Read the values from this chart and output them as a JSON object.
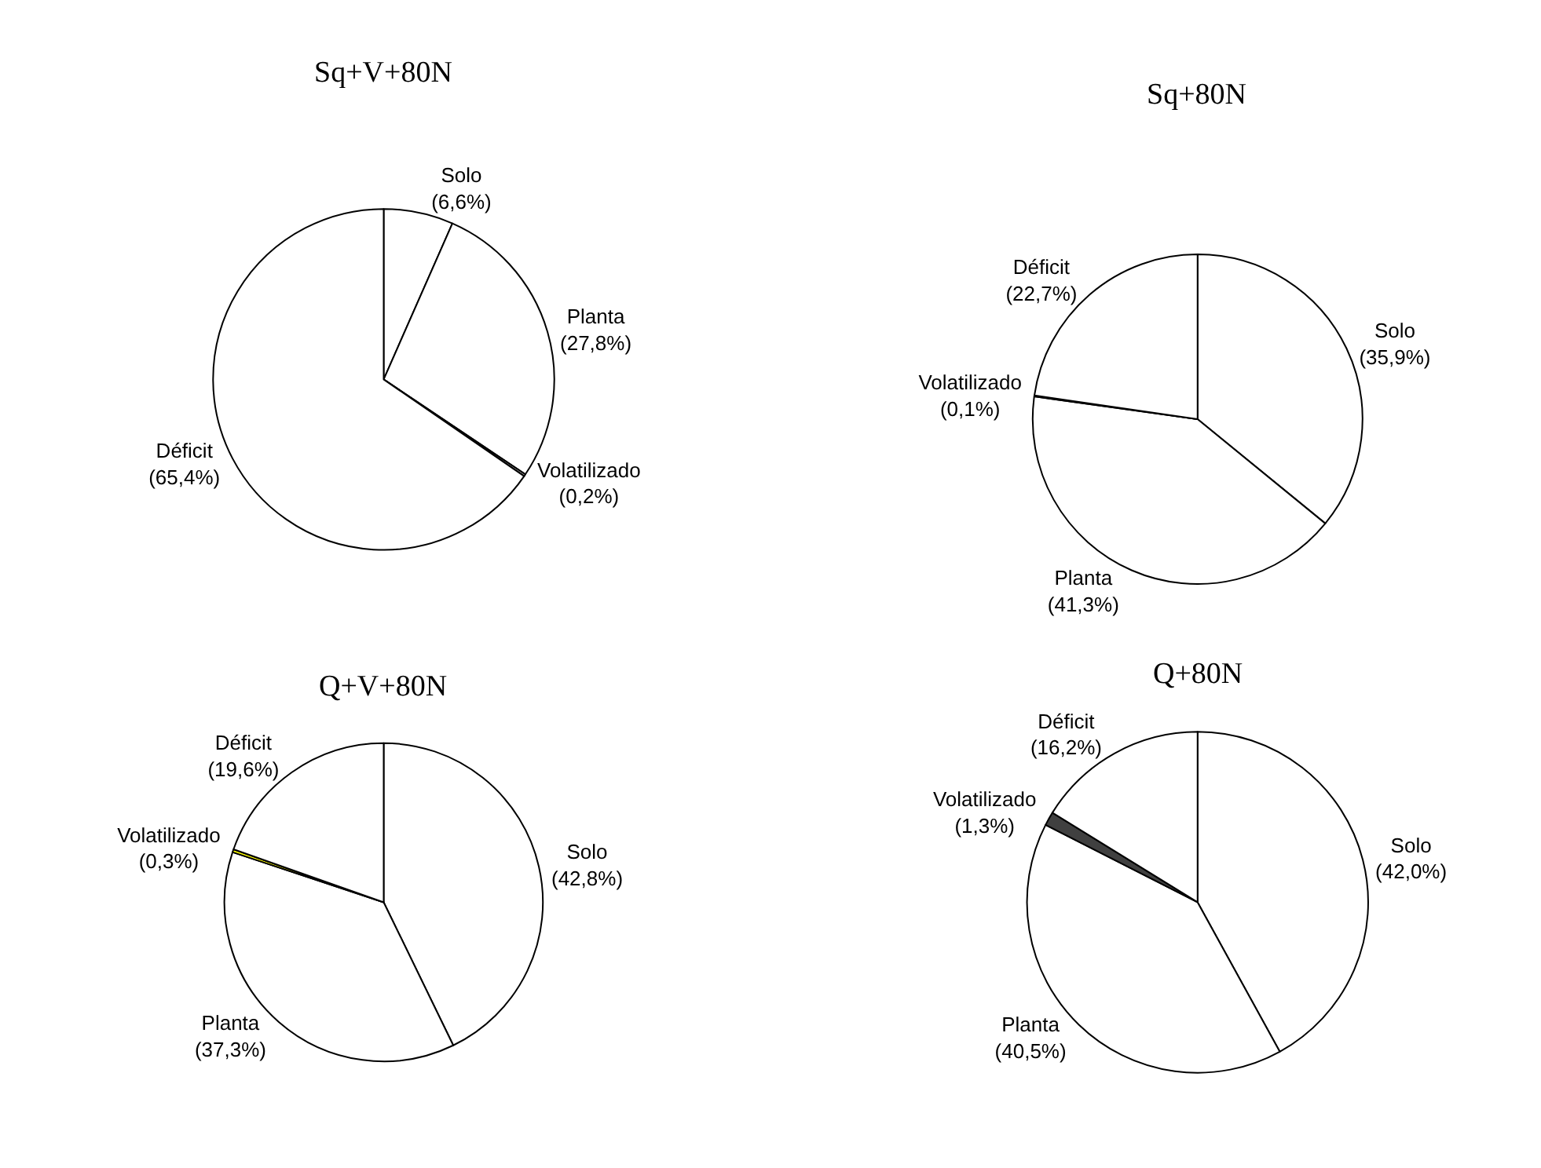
{
  "chart_data": [
    {
      "type": "pie",
      "title": "Sq+V+80N",
      "categories": [
        "Solo",
        "Planta",
        "Volatilizado",
        "Déficit"
      ],
      "values": [
        6.6,
        27.8,
        0.2,
        65.4
      ],
      "value_labels": [
        "(6,6%)",
        "(27,8%)",
        "(0,2%)",
        "(65,4%)"
      ],
      "colors": [
        "#ffffff",
        "#ffffff",
        "#ffffff",
        "#ffffff"
      ]
    },
    {
      "type": "pie",
      "title": "Sq+80N",
      "categories": [
        "Solo",
        "Planta",
        "Volatilizado",
        "Déficit"
      ],
      "values": [
        35.9,
        41.3,
        0.1,
        22.7
      ],
      "value_labels": [
        "(35,9%)",
        "(41,3%)",
        "(0,1%)",
        "(22,7%)"
      ],
      "colors": [
        "#ffffff",
        "#ffffff",
        "#ffffff",
        "#ffffff"
      ]
    },
    {
      "type": "pie",
      "title": "Q+V+80N",
      "categories": [
        "Solo",
        "Planta",
        "Volatilizado",
        "Déficit"
      ],
      "values": [
        42.8,
        37.3,
        0.3,
        19.6
      ],
      "value_labels": [
        "(42,8%)",
        "(37,3%)",
        "(0,3%)",
        "(19,6%)"
      ],
      "colors": [
        "#ffffff",
        "#ffffff",
        "#ffff00",
        "#ffffff"
      ]
    },
    {
      "type": "pie",
      "title": "Q+80N",
      "categories": [
        "Solo",
        "Planta",
        "Volatilizado",
        "Déficit"
      ],
      "values": [
        42.0,
        40.5,
        1.3,
        16.2
      ],
      "value_labels": [
        "(42,0%)",
        "(40,5%)",
        "(1,3%)",
        "(16,2%)"
      ],
      "colors": [
        "#ffffff",
        "#ffffff",
        "#404040",
        "#ffffff"
      ]
    }
  ]
}
